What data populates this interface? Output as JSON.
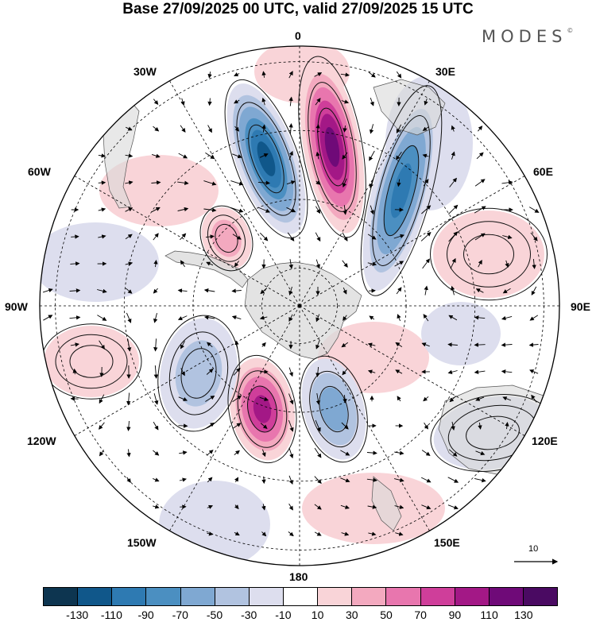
{
  "title": "Base 27/09/2025 00 UTC, valid 27/09/2025 15 UTC",
  "brand": {
    "name": "MODES",
    "mark": "©"
  },
  "longitudes": {
    "lon_0": "0",
    "lon_30e": "30E",
    "lon_60e": "60E",
    "lon_90e": "90E",
    "lon_120e": "120E",
    "lon_150e": "150E",
    "lon_180": "180",
    "lon_150w": "150W",
    "lon_120w": "120W",
    "lon_90w": "90W",
    "lon_60w": "60W",
    "lon_30w": "30W"
  },
  "wind_reference": {
    "value": "10"
  },
  "colorbar": {
    "ticks": [
      "-130",
      "-110",
      "-90",
      "-70",
      "-50",
      "-30",
      "-10",
      "10",
      "30",
      "50",
      "70",
      "90",
      "110",
      "130"
    ],
    "colors": [
      "#0d3550",
      "#10578a",
      "#2e7ab2",
      "#4b8fc1",
      "#7fa8d2",
      "#b1c3e0",
      "#dddeee",
      "#ffffff",
      "#f9d4d8",
      "#f3a9bf",
      "#e876ae",
      "#cf3e9a",
      "#a31886",
      "#6f0a78",
      "#4a0a62"
    ]
  },
  "anomaly_cells": [
    {
      "name": "cell-blue-greenwich-west",
      "value": -130
    },
    {
      "name": "cell-magenta-greenwich",
      "value": 130
    },
    {
      "name": "cell-blue-30e",
      "value": -110
    },
    {
      "name": "cell-magenta-150w",
      "value": 110
    },
    {
      "name": "cell-blue-150e",
      "value": -70
    },
    {
      "name": "cell-blue-120w",
      "value": -50
    },
    {
      "name": "cell-pink-60w",
      "value": 50
    },
    {
      "name": "cell-pink-90e",
      "value": 30
    },
    {
      "name": "cell-pink-90w",
      "value": 30
    },
    {
      "name": "cell-blue-120e",
      "value": -30
    }
  ]
}
